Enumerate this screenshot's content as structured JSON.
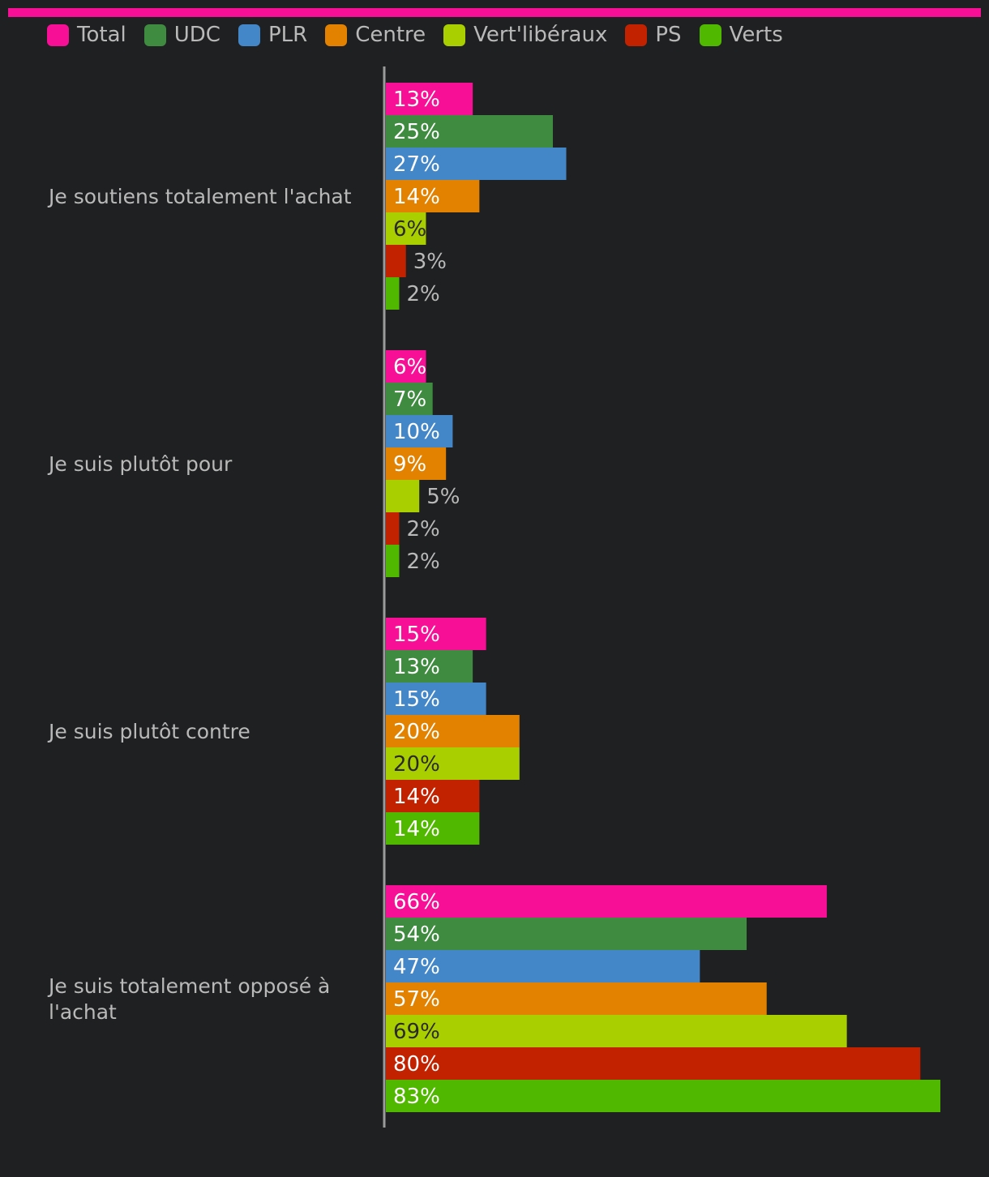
{
  "accent_color": "#f70f96",
  "chart_data": {
    "type": "bar",
    "orientation": "horizontal",
    "title": "",
    "xlabel": "",
    "ylabel": "",
    "grid": false,
    "legend_position": "top",
    "value_suffix": "%",
    "xlim": [
      0,
      83
    ],
    "categories": [
      "Je soutiens totalement l'achat",
      "Je suis plutôt pour",
      "Je suis plutôt contre",
      "Je suis totalement opposé à l'achat"
    ],
    "series": [
      {
        "name": "Total",
        "color": "#f70f96",
        "values": [
          13,
          6,
          15,
          66
        ]
      },
      {
        "name": "UDC",
        "color": "#3f8b40",
        "values": [
          25,
          7,
          13,
          54
        ]
      },
      {
        "name": "PLR",
        "color": "#4487c9",
        "values": [
          27,
          10,
          15,
          47
        ]
      },
      {
        "name": "Centre",
        "color": "#e28200",
        "values": [
          14,
          9,
          20,
          57
        ]
      },
      {
        "name": "Vert'libéraux",
        "color": "#aacf00",
        "values": [
          6,
          5,
          20,
          69
        ]
      },
      {
        "name": "PS",
        "color": "#c22200",
        "values": [
          3,
          2,
          14,
          80
        ]
      },
      {
        "name": "Verts",
        "color": "#51b800",
        "values": [
          2,
          2,
          14,
          83
        ]
      }
    ]
  }
}
